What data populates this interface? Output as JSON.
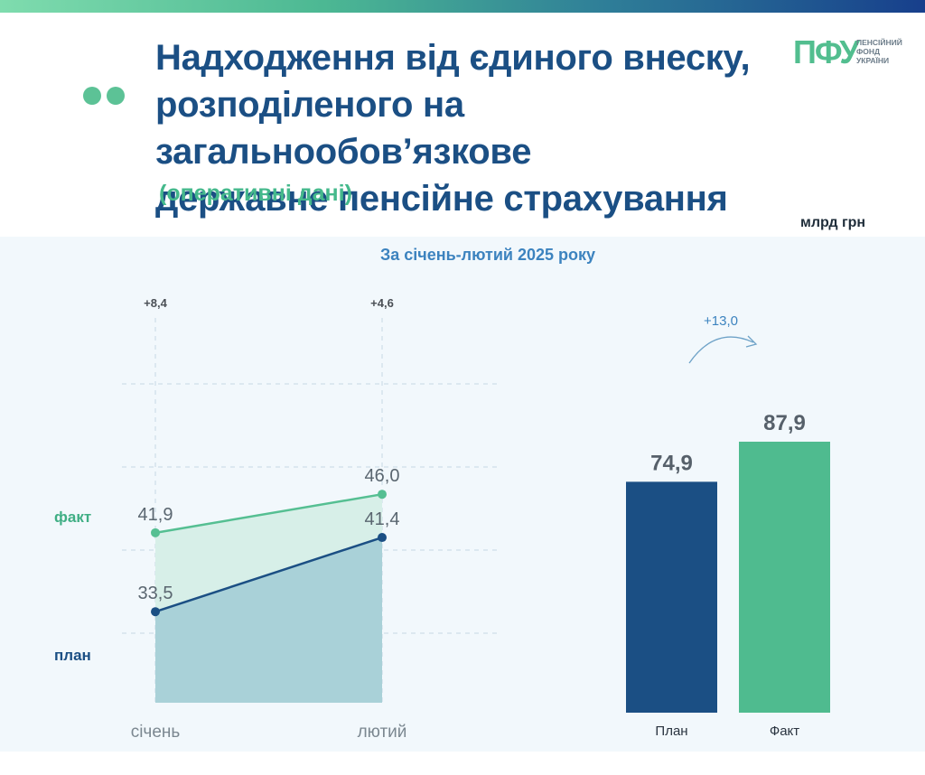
{
  "header": {
    "title_lines": [
      "Надходження від єдиного внеску,",
      "розподіленого на загальнообов’язкове",
      "державне пенсійне страхування"
    ],
    "subtitle": "(оперативні дані)",
    "unit": "млрд грн"
  },
  "logo": {
    "mark": "ПФУ",
    "text_lines": [
      "ПЕНСІЙНИЙ",
      "ФОНД",
      "УКРАЇНИ"
    ]
  },
  "colors": {
    "plan": "#1b4f84",
    "fact": "#4cb893",
    "accent": "#3c83bf"
  },
  "chart_data": [
    {
      "type": "line",
      "title": "За січень-лютий 2025 року",
      "categories": [
        "січень",
        "лютий"
      ],
      "series": [
        {
          "name": "факт",
          "values": [
            41.9,
            46.0
          ],
          "labels": [
            "41,9",
            "46,0"
          ]
        },
        {
          "name": "план",
          "values": [
            33.5,
            41.4
          ],
          "labels": [
            "33,5",
            "41,4"
          ]
        }
      ],
      "differences": [
        "+8,4",
        "+4,6"
      ],
      "area_fill": true,
      "grid": "horizontal dashed",
      "legend": "left"
    },
    {
      "type": "bar",
      "categories": [
        "План",
        "Факт"
      ],
      "values": [
        74.9,
        87.9
      ],
      "labels": [
        "74,9",
        "87,9"
      ],
      "difference": "+13,0"
    }
  ]
}
